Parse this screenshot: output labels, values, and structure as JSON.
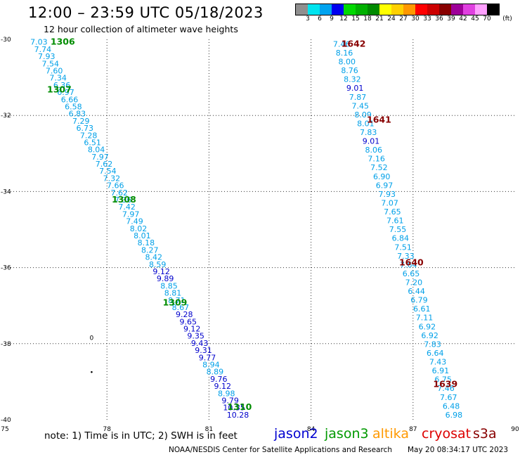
{
  "header": {
    "title": "12:00 – 23:59 UTC 05/18/2023",
    "subtitle": "12 hour collection of altimeter wave heights"
  },
  "legend": {
    "unit": "(ft)",
    "bins": [
      {
        "label": "3",
        "color": "#8f8f8f"
      },
      {
        "label": "6",
        "color": "#00e4ef"
      },
      {
        "label": "9",
        "color": "#00a3ef"
      },
      {
        "label": "12",
        "color": "#0000ef"
      },
      {
        "label": "15",
        "color": "#00d900"
      },
      {
        "label": "18",
        "color": "#00b000"
      },
      {
        "label": "21",
        "color": "#008a00"
      },
      {
        "label": "24",
        "color": "#ffff00"
      },
      {
        "label": "27",
        "color": "#ffd000"
      },
      {
        "label": "30",
        "color": "#ff9800"
      },
      {
        "label": "33",
        "color": "#ff0000"
      },
      {
        "label": "36",
        "color": "#cc0000"
      },
      {
        "label": "39",
        "color": "#880000"
      },
      {
        "label": "42",
        "color": "#9e0099"
      },
      {
        "label": "45",
        "color": "#e040e0"
      },
      {
        "label": "70",
        "color": "#ffa0ff"
      },
      {
        "label": "",
        "color": "#000000"
      }
    ]
  },
  "chart_data": {
    "type": "scatter",
    "xlim": [
      75,
      90
    ],
    "ylim": [
      -40,
      -30
    ],
    "x_ticks": [
      "75",
      "78",
      "81",
      "84",
      "87",
      "90"
    ],
    "y_ticks": [
      "-30",
      "-32",
      "-34",
      "-36",
      "-38",
      "-40"
    ],
    "grid": true,
    "tracks": [
      {
        "satellite": "jason3",
        "color": "#008c00",
        "heights": [
          "7.03",
          "7.74",
          "7.93",
          "7.54",
          "7.60",
          "7.34",
          "6.36",
          "6.97",
          "6.66",
          "6.58",
          "6.83",
          "7.29",
          "6.73",
          "7.28",
          "6.51",
          "8.04",
          "7.97",
          "7.62",
          "7.54",
          "7.32",
          "7.66",
          "7.62",
          "7.36",
          "7.42",
          "7.97",
          "7.49",
          "8.02",
          "8.01",
          "8.18",
          "8.27",
          "8.42",
          "8.59",
          "9.12",
          "9.89",
          "8.85",
          "8.81",
          "8.71",
          "8.67",
          "9.28",
          "9.65",
          "9.12",
          "9.35",
          "9.43",
          "9.31",
          "9.77",
          "8.94",
          "8.89",
          "9.76",
          "9.12",
          "8.98",
          "9.79",
          "10.35",
          "10.28"
        ],
        "time_labels": [
          {
            "text": "1306",
            "lon": 76.7,
            "lat": -30.05
          },
          {
            "text": "1307",
            "lon": 76.6,
            "lat": -31.3
          },
          {
            "text": "1308",
            "lon": 78.5,
            "lat": -34.2
          },
          {
            "text": "1309",
            "lon": 80.0,
            "lat": -36.9
          },
          {
            "text": "1310",
            "lon": 81.9,
            "lat": -39.65
          }
        ]
      },
      {
        "satellite": "cryosat",
        "color": "#880000",
        "heights": [
          "7.46",
          "8.16",
          "8.00",
          "8.76",
          "8.32",
          "9.01",
          "7.87",
          "7.45",
          "8.09",
          "8.01",
          "7.83",
          "9.01",
          "8.06",
          "7.16",
          "7.52",
          "6.90",
          "6.97",
          "7.93",
          "7.07",
          "7.65",
          "7.61",
          "7.55",
          "6.84",
          "7.51",
          "7.33",
          "7.64",
          "6.65",
          "7.20",
          "6.44",
          "6.79",
          "6.61",
          "7.11",
          "6.92",
          "6.92",
          "7.83",
          "6.64",
          "7.43",
          "6.91",
          "6.75",
          "7.46",
          "7.67",
          "6.48",
          "6.98"
        ],
        "time_labels": [
          {
            "text": "1642",
            "lon": 85.25,
            "lat": -30.1
          },
          {
            "text": "1641",
            "lon": 86.0,
            "lat": -32.1
          },
          {
            "text": "1640",
            "lon": 86.95,
            "lat": -35.85
          },
          {
            "text": "1639",
            "lon": 87.95,
            "lat": -39.05
          }
        ]
      }
    ],
    "markers": [
      {
        "symbol": "0",
        "lon": 77.55,
        "lat": -37.85
      },
      {
        "symbol": "•",
        "lon": 77.55,
        "lat": -38.75
      }
    ]
  },
  "footer": {
    "note": "note:  1) Time is in UTC; 2) SWH is in feet",
    "satellites": [
      {
        "name": "jason2",
        "color": "#0000d0"
      },
      {
        "name": "jason3",
        "color": "#009900"
      },
      {
        "name": "altika",
        "color": "#ff9900"
      },
      {
        "name": "cryosat",
        "color": "#dd0000"
      },
      {
        "name": "s3a",
        "color": "#880000"
      }
    ],
    "credit": "NOAA/NESDIS Center for Satellite Applications and Research",
    "timestamp": "May 20 08:34:17 UTC 2023"
  }
}
